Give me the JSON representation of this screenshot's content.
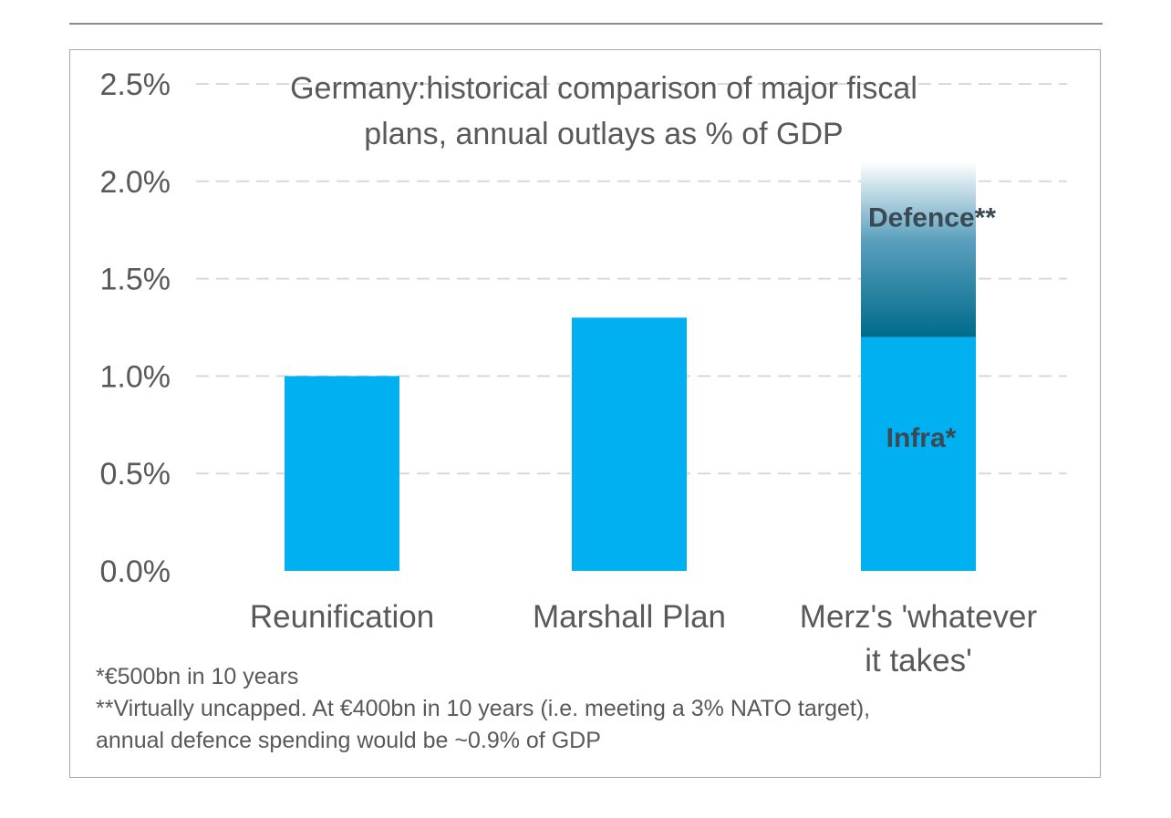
{
  "chart_data": {
    "type": "bar",
    "title_lines": [
      "Germany:historical comparison of major fiscal",
      "plans, annual outlays as % of GDP"
    ],
    "categories": [
      {
        "lines": [
          "Reunification"
        ]
      },
      {
        "lines": [
          "Marshall Plan"
        ]
      },
      {
        "lines": [
          "Merz's 'whatever",
          "it takes'"
        ]
      }
    ],
    "series": [
      {
        "label": "Infra*",
        "values": [
          1.0,
          1.3,
          1.2
        ],
        "color": "#00b0f0"
      },
      {
        "label": "Defence**",
        "values": [
          0,
          0,
          0.9
        ],
        "color_gradient": [
          "#006b8c",
          "#ffffff"
        ],
        "labeled_on": 2
      }
    ],
    "ylim": [
      0,
      2.5
    ],
    "yticks": [
      0.0,
      0.5,
      1.0,
      1.5,
      2.0,
      2.5
    ],
    "ytick_labels": [
      "0.0%",
      "0.5%",
      "1.0%",
      "1.5%",
      "2.0%",
      "2.5%"
    ],
    "grid": true,
    "grid_style": "dashed",
    "grid_color": "#d9d9d9",
    "label_color": "#595959"
  },
  "footnotes": {
    "line1": "*€500bn in 10 years",
    "line2": "**Virtually uncapped. At €400bn in 10 years (i.e. meeting a 3% NATO target),",
    "line3": "annual defence spending would be ~0.9% of GDP"
  }
}
